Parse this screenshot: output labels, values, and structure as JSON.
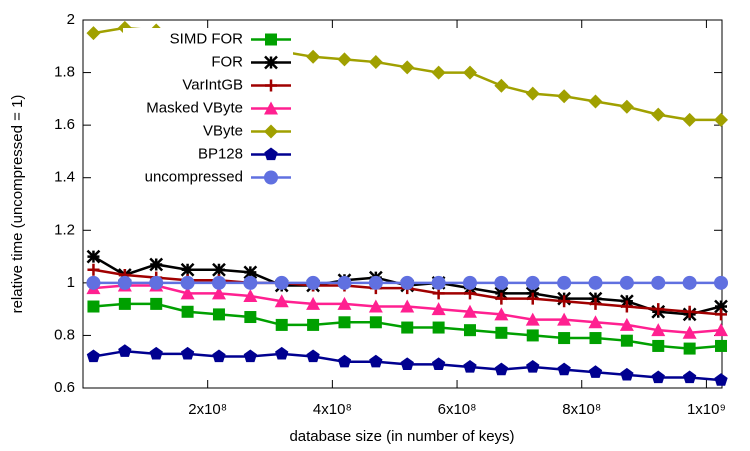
{
  "chart_data": {
    "type": "line",
    "xlabel": "database size (in number of keys)",
    "ylabel": "relative time (uncompressed = 1)",
    "x": [
      16777216,
      67108864,
      117440512,
      167772160,
      218103808,
      268435456,
      318767104,
      369098752,
      419430400,
      469762048,
      520093696,
      570425344,
      620756992,
      671088640,
      721420288,
      771751936,
      822083584,
      872415232,
      922746880,
      973078528,
      1023410176
    ],
    "series": [
      {
        "name": "SIMD FOR",
        "color": "#00a000",
        "marker": "square",
        "values": [
          0.91,
          0.92,
          0.92,
          0.89,
          0.88,
          0.87,
          0.84,
          0.84,
          0.85,
          0.85,
          0.83,
          0.83,
          0.82,
          0.81,
          0.8,
          0.79,
          0.79,
          0.78,
          0.76,
          0.75,
          0.76
        ]
      },
      {
        "name": "FOR",
        "color": "#000000",
        "marker": "star",
        "values": [
          1.1,
          1.03,
          1.07,
          1.05,
          1.05,
          1.04,
          0.99,
          0.99,
          1.01,
          1.02,
          0.99,
          1.0,
          0.98,
          0.96,
          0.96,
          0.94,
          0.94,
          0.93,
          0.89,
          0.88,
          0.91
        ]
      },
      {
        "name": "VarIntGB",
        "color": "#a00000",
        "marker": "plus",
        "values": [
          1.05,
          1.03,
          1.02,
          1.01,
          1.01,
          1.0,
          1.0,
          0.99,
          0.99,
          0.98,
          0.98,
          0.96,
          0.96,
          0.94,
          0.94,
          0.93,
          0.92,
          0.91,
          0.9,
          0.89,
          0.88
        ]
      },
      {
        "name": "Masked VByte",
        "color": "#ff2090",
        "marker": "triangle",
        "values": [
          0.98,
          0.99,
          0.99,
          0.96,
          0.96,
          0.95,
          0.93,
          0.92,
          0.92,
          0.91,
          0.91,
          0.9,
          0.89,
          0.88,
          0.86,
          0.86,
          0.85,
          0.84,
          0.82,
          0.81,
          0.82
        ]
      },
      {
        "name": "VByte",
        "color": "#a0a000",
        "marker": "diamond",
        "values": [
          1.95,
          1.97,
          1.96,
          1.94,
          1.92,
          1.9,
          1.88,
          1.86,
          1.85,
          1.84,
          1.82,
          1.8,
          1.8,
          1.75,
          1.72,
          1.71,
          1.69,
          1.67,
          1.64,
          1.62,
          1.62
        ]
      },
      {
        "name": "BP128",
        "color": "#000090",
        "marker": "pentagon",
        "values": [
          0.72,
          0.74,
          0.73,
          0.73,
          0.72,
          0.72,
          0.73,
          0.72,
          0.7,
          0.7,
          0.69,
          0.69,
          0.68,
          0.67,
          0.68,
          0.67,
          0.66,
          0.65,
          0.64,
          0.64,
          0.63
        ]
      },
      {
        "name": "uncompressed",
        "color": "#6070e0",
        "marker": "circle",
        "values": [
          1,
          1,
          1,
          1,
          1,
          1,
          1,
          1,
          1,
          1,
          1,
          1,
          1,
          1,
          1,
          1,
          1,
          1,
          1,
          1,
          1
        ]
      }
    ],
    "xlim": [
      0,
      1025000000
    ],
    "xticks": [
      {
        "value": 200000000,
        "label": "2x10⁸"
      },
      {
        "value": 400000000,
        "label": "4x10⁸"
      },
      {
        "value": 600000000,
        "label": "6x10⁸"
      },
      {
        "value": 800000000,
        "label": "8x10⁸"
      },
      {
        "value": 1000000000,
        "label": "1x10⁹"
      }
    ],
    "ylim": [
      0.6,
      2
    ],
    "yticks": [
      0.6,
      0.8,
      1,
      1.2,
      1.4,
      1.6,
      1.8,
      2
    ],
    "legend": "top left"
  }
}
